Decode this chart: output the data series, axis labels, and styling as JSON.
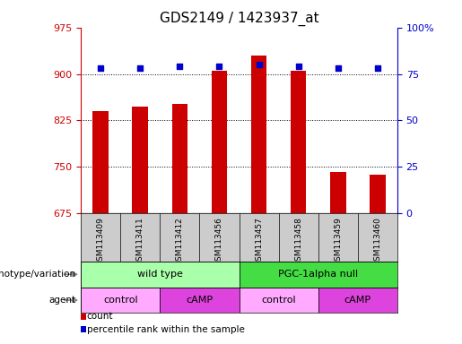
{
  "title": "GDS2149 / 1423937_at",
  "samples": [
    "GSM113409",
    "GSM113411",
    "GSM113412",
    "GSM113456",
    "GSM113457",
    "GSM113458",
    "GSM113459",
    "GSM113460"
  ],
  "bar_values": [
    840,
    847,
    852,
    905,
    930,
    905,
    742,
    737
  ],
  "percentile_values": [
    78,
    78,
    79,
    79,
    80,
    79,
    78,
    78
  ],
  "bar_color": "#cc0000",
  "dot_color": "#0000cc",
  "ylim_left": [
    675,
    975
  ],
  "yticks_left": [
    675,
    750,
    825,
    900,
    975
  ],
  "ylim_right": [
    0,
    100
  ],
  "yticks_right": [
    0,
    25,
    50,
    75,
    100
  ],
  "ytick_labels_right": [
    "0",
    "25",
    "50",
    "75",
    "100%"
  ],
  "grid_values": [
    750,
    825,
    900
  ],
  "genotype_groups": [
    {
      "label": "wild type",
      "start": 0,
      "end": 4,
      "color": "#aaffaa"
    },
    {
      "label": "PGC-1alpha null",
      "start": 4,
      "end": 8,
      "color": "#44dd44"
    }
  ],
  "agent_groups": [
    {
      "label": "control",
      "start": 0,
      "end": 2,
      "color": "#ffaaff"
    },
    {
      "label": "cAMP",
      "start": 2,
      "end": 4,
      "color": "#dd44dd"
    },
    {
      "label": "control",
      "start": 4,
      "end": 6,
      "color": "#ffaaff"
    },
    {
      "label": "cAMP",
      "start": 6,
      "end": 8,
      "color": "#dd44dd"
    }
  ],
  "legend_items": [
    {
      "label": "count",
      "color": "#cc0000"
    },
    {
      "label": "percentile rank within the sample",
      "color": "#0000cc"
    }
  ],
  "left_axis_color": "#cc0000",
  "right_axis_color": "#0000cc",
  "bar_width": 0.4,
  "label_area_color": "#cccccc"
}
